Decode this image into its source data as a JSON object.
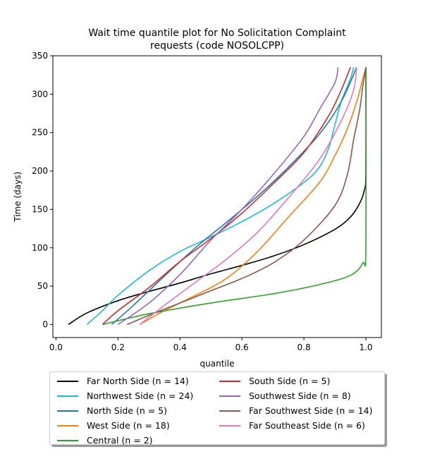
{
  "chart_data": {
    "type": "line",
    "title": "Wait time quantile plot for No Solicitation Complaint\nrequests (code NOSOLCPP)",
    "xlabel": "quantile",
    "ylabel": "Time (days)",
    "xlim": [
      -0.01,
      1.05
    ],
    "ylim": [
      -17,
      350
    ],
    "xticks": [
      0.0,
      0.2,
      0.4,
      0.6,
      0.8,
      1.0
    ],
    "xtick_labels": [
      "0.0",
      "0.2",
      "0.4",
      "0.6",
      "0.8",
      "1.0"
    ],
    "yticks": [
      0,
      50,
      100,
      150,
      200,
      250,
      300,
      350
    ],
    "ytick_labels": [
      "0",
      "50",
      "100",
      "150",
      "200",
      "250",
      "300",
      "350"
    ],
    "grid": false,
    "legend_position": "below",
    "series": [
      {
        "name": "Far North Side (n = 14)",
        "color": "#000000",
        "points": [
          [
            0.04,
            0
          ],
          [
            0.1,
            15
          ],
          [
            0.2,
            31
          ],
          [
            0.3,
            43
          ],
          [
            0.4,
            54
          ],
          [
            0.5,
            66
          ],
          [
            0.6,
            77
          ],
          [
            0.7,
            89
          ],
          [
            0.8,
            104
          ],
          [
            0.9,
            124
          ],
          [
            0.95,
            140
          ],
          [
            0.98,
            158
          ],
          [
            0.995,
            175
          ],
          [
            1.0,
            200
          ],
          [
            1.0,
            335
          ]
        ]
      },
      {
        "name": "Northwest Side (n = 24)",
        "color": "#17becf",
        "points": [
          [
            0.1,
            0
          ],
          [
            0.15,
            18
          ],
          [
            0.2,
            38
          ],
          [
            0.3,
            70
          ],
          [
            0.4,
            95
          ],
          [
            0.5,
            114
          ],
          [
            0.6,
            134
          ],
          [
            0.7,
            157
          ],
          [
            0.8,
            185
          ],
          [
            0.85,
            205
          ],
          [
            0.88,
            230
          ],
          [
            0.9,
            260
          ],
          [
            0.92,
            290
          ],
          [
            0.95,
            320
          ],
          [
            0.96,
            335
          ]
        ]
      },
      {
        "name": "North Side (n = 5)",
        "color": "#1f77b4",
        "points": [
          [
            0.18,
            0
          ],
          [
            0.25,
            25
          ],
          [
            0.35,
            63
          ],
          [
            0.45,
            100
          ],
          [
            0.55,
            133
          ],
          [
            0.65,
            167
          ],
          [
            0.75,
            205
          ],
          [
            0.85,
            248
          ],
          [
            0.92,
            290
          ],
          [
            0.97,
            335
          ]
        ]
      },
      {
        "name": "West Side (n = 18)",
        "color": "#ff7f0e",
        "points": [
          [
            0.27,
            0
          ],
          [
            0.35,
            18
          ],
          [
            0.45,
            38
          ],
          [
            0.55,
            60
          ],
          [
            0.65,
            95
          ],
          [
            0.75,
            140
          ],
          [
            0.85,
            185
          ],
          [
            0.9,
            220
          ],
          [
            0.94,
            255
          ],
          [
            0.97,
            290
          ],
          [
            0.99,
            320
          ],
          [
            1.0,
            335
          ]
        ]
      },
      {
        "name": "Central (n = 2)",
        "color": "#2ca02c",
        "points": [
          [
            0.15,
            0
          ],
          [
            0.3,
            14
          ],
          [
            0.5,
            28
          ],
          [
            0.7,
            40
          ],
          [
            0.85,
            52
          ],
          [
            0.95,
            64
          ],
          [
            0.99,
            80
          ],
          [
            1.0,
            100
          ],
          [
            1.0,
            335
          ]
        ]
      },
      {
        "name": "South Side (n = 5)",
        "color": "#d62728",
        "points": [
          [
            0.15,
            0
          ],
          [
            0.2,
            18
          ],
          [
            0.3,
            48
          ],
          [
            0.4,
            82
          ],
          [
            0.5,
            112
          ],
          [
            0.6,
            145
          ],
          [
            0.7,
            183
          ],
          [
            0.8,
            224
          ],
          [
            0.88,
            272
          ],
          [
            0.92,
            305
          ],
          [
            0.95,
            335
          ]
        ]
      },
      {
        "name": "Southwest Side (n = 8)",
        "color": "#9467bd",
        "points": [
          [
            0.2,
            0
          ],
          [
            0.3,
            28
          ],
          [
            0.4,
            65
          ],
          [
            0.5,
            110
          ],
          [
            0.6,
            150
          ],
          [
            0.7,
            195
          ],
          [
            0.8,
            245
          ],
          [
            0.85,
            280
          ],
          [
            0.9,
            315
          ],
          [
            0.91,
            335
          ]
        ]
      },
      {
        "name": "Far Southwest Side (n = 14)",
        "color": "#8c564b",
        "points": [
          [
            0.23,
            0
          ],
          [
            0.3,
            12
          ],
          [
            0.4,
            28
          ],
          [
            0.5,
            44
          ],
          [
            0.6,
            60
          ],
          [
            0.7,
            80
          ],
          [
            0.8,
            110
          ],
          [
            0.9,
            155
          ],
          [
            0.94,
            195
          ],
          [
            0.96,
            240
          ],
          [
            0.98,
            280
          ],
          [
            0.99,
            310
          ],
          [
            1.0,
            335
          ]
        ]
      },
      {
        "name": "Far Southeast Side (n = 6)",
        "color": "#e377c2",
        "points": [
          [
            0.27,
            0
          ],
          [
            0.35,
            25
          ],
          [
            0.45,
            55
          ],
          [
            0.55,
            85
          ],
          [
            0.65,
            120
          ],
          [
            0.75,
            165
          ],
          [
            0.85,
            215
          ],
          [
            0.92,
            265
          ],
          [
            0.96,
            305
          ],
          [
            0.97,
            335
          ]
        ]
      }
    ]
  }
}
